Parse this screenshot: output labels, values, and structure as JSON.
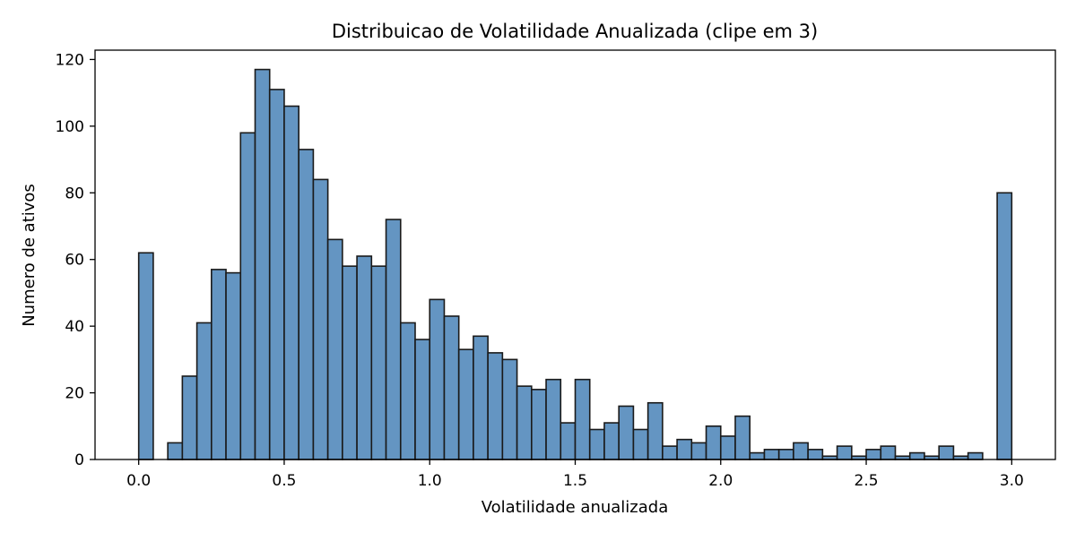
{
  "chart_data": {
    "type": "bar",
    "title": "Distribuicao de Volatilidade Anualizada (clipe em 3)",
    "xlabel": "Volatilidade anualizada",
    "ylabel": "Numero de ativos",
    "xlim": [
      -0.15,
      3.15
    ],
    "ylim": [
      0,
      122.8
    ],
    "xticks": [
      0.0,
      0.5,
      1.0,
      1.5,
      2.0,
      2.5,
      3.0
    ],
    "xtick_labels": [
      "0.0",
      "0.5",
      "1.0",
      "1.5",
      "2.0",
      "2.5",
      "3.0"
    ],
    "yticks": [
      0,
      20,
      40,
      60,
      80,
      100,
      120
    ],
    "ytick_labels": [
      "0",
      "20",
      "40",
      "60",
      "80",
      "100",
      "120"
    ],
    "bin_width": 0.05,
    "bin_starts": [
      0.0,
      0.05,
      0.1,
      0.15,
      0.2,
      0.25,
      0.3,
      0.35,
      0.4,
      0.45,
      0.5,
      0.55,
      0.6,
      0.65,
      0.7,
      0.75,
      0.8,
      0.85,
      0.9,
      0.95,
      1.0,
      1.05,
      1.1,
      1.15,
      1.2,
      1.25,
      1.3,
      1.35,
      1.4,
      1.45,
      1.5,
      1.55,
      1.6,
      1.65,
      1.7,
      1.75,
      1.8,
      1.85,
      1.9,
      1.95,
      2.0,
      2.05,
      2.1,
      2.15,
      2.2,
      2.25,
      2.3,
      2.35,
      2.4,
      2.45,
      2.5,
      2.55,
      2.6,
      2.65,
      2.7,
      2.75,
      2.8,
      2.85,
      2.9,
      2.95
    ],
    "values": [
      62,
      0,
      5,
      25,
      41,
      57,
      56,
      98,
      117,
      111,
      106,
      93,
      84,
      66,
      58,
      61,
      58,
      72,
      41,
      36,
      48,
      43,
      33,
      37,
      32,
      30,
      22,
      21,
      24,
      11,
      24,
      9,
      11,
      16,
      9,
      17,
      4,
      6,
      5,
      10,
      7,
      13,
      2,
      3,
      3,
      5,
      3,
      1,
      4,
      1,
      3,
      4,
      1,
      2,
      1,
      4,
      1,
      2,
      0,
      80
    ],
    "bar_color": "#6495c2",
    "edge_color": "#1a1a1a",
    "grid": false,
    "legend": "none"
  }
}
